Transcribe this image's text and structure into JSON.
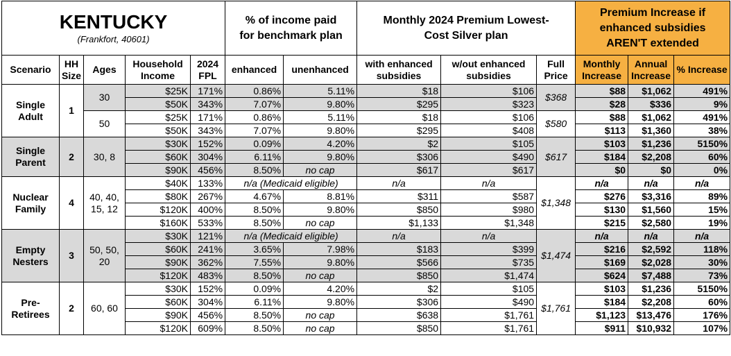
{
  "header": {
    "title": "KENTUCKY",
    "subtitle": "(Frankfort, 40601)",
    "income_share": "% of income paid for benchmark plan",
    "premium": "Monthly 2024 Premium Lowest-Cost Silver plan",
    "increase": "Premium Increase if enhanced subsidies AREN'T extended"
  },
  "columns": [
    "Scenario",
    "HH Size",
    "Ages",
    "Household Income",
    "2024 FPL",
    "enhanced",
    "unenhanced",
    "with enhanced subsidies",
    "w/out enhanced subsidies",
    "Full Price",
    "Monthly Increase",
    "Annual Increase",
    "% Increase"
  ],
  "table": {
    "groups": [
      {
        "scenario": "Single Adult",
        "hh_size": "1",
        "subgroups": [
          {
            "ages": "30",
            "full_price": "$368",
            "shaded": true,
            "rows": [
              {
                "income": "$25K",
                "fpl": "171%",
                "enhanced": "0.86%",
                "unenhanced": "5.11%",
                "with_subsidies": "$18",
                "without_subsidies": "$106",
                "monthly_increase": "$88",
                "annual_increase": "$1,062",
                "pct_increase": "491%"
              },
              {
                "income": "$50K",
                "fpl": "343%",
                "enhanced": "7.07%",
                "unenhanced": "9.80%",
                "with_subsidies": "$295",
                "without_subsidies": "$323",
                "monthly_increase": "$28",
                "annual_increase": "$336",
                "pct_increase": "9%"
              }
            ]
          },
          {
            "ages": "50",
            "full_price": "$580",
            "shaded": false,
            "rows": [
              {
                "income": "$25K",
                "fpl": "171%",
                "enhanced": "0.86%",
                "unenhanced": "5.11%",
                "with_subsidies": "$18",
                "without_subsidies": "$106",
                "monthly_increase": "$88",
                "annual_increase": "$1,062",
                "pct_increase": "491%"
              },
              {
                "income": "$50K",
                "fpl": "343%",
                "enhanced": "7.07%",
                "unenhanced": "9.80%",
                "with_subsidies": "$295",
                "without_subsidies": "$408",
                "monthly_increase": "$113",
                "annual_increase": "$1,360",
                "pct_increase": "38%"
              }
            ]
          }
        ]
      },
      {
        "scenario": "Single Parent",
        "hh_size": "2",
        "shaded": true,
        "subgroups": [
          {
            "ages": "30, 8",
            "full_price": "$617",
            "shaded": true,
            "rows": [
              {
                "income": "$30K",
                "fpl": "152%",
                "enhanced": "0.09%",
                "unenhanced": "4.20%",
                "with_subsidies": "$2",
                "without_subsidies": "$105",
                "monthly_increase": "$103",
                "annual_increase": "$1,236",
                "pct_increase": "5150%"
              },
              {
                "income": "$60K",
                "fpl": "304%",
                "enhanced": "6.11%",
                "unenhanced": "9.80%",
                "with_subsidies": "$306",
                "without_subsidies": "$490",
                "monthly_increase": "$184",
                "annual_increase": "$2,208",
                "pct_increase": "60%"
              },
              {
                "income": "$90K",
                "fpl": "456%",
                "enhanced": "8.50%",
                "unenhanced": "no cap",
                "with_subsidies": "$617",
                "without_subsidies": "$617",
                "monthly_increase": "$0",
                "annual_increase": "$0",
                "pct_increase": "0%"
              }
            ]
          }
        ]
      },
      {
        "scenario": "Nuclear Family",
        "hh_size": "4",
        "subgroups": [
          {
            "ages": "40, 40, 15, 12",
            "full_price": "$1,348",
            "shaded": false,
            "rows": [
              {
                "income": "$40K",
                "fpl": "133%",
                "enhanced": "n/a (Medicaid eligible)",
                "with_subsidies": "n/a",
                "without_subsidies": "n/a",
                "monthly_increase": "n/a",
                "annual_increase": "n/a",
                "pct_increase": "n/a"
              },
              {
                "income": "$80K",
                "fpl": "267%",
                "enhanced": "4.67%",
                "unenhanced": "8.81%",
                "with_subsidies": "$311",
                "without_subsidies": "$587",
                "monthly_increase": "$276",
                "annual_increase": "$3,316",
                "pct_increase": "89%"
              },
              {
                "income": "$120K",
                "fpl": "400%",
                "enhanced": "8.50%",
                "unenhanced": "9.80%",
                "with_subsidies": "$850",
                "without_subsidies": "$980",
                "monthly_increase": "$130",
                "annual_increase": "$1,560",
                "pct_increase": "15%"
              },
              {
                "income": "$160K",
                "fpl": "533%",
                "enhanced": "8.50%",
                "unenhanced": "no cap",
                "with_subsidies": "$1,133",
                "without_subsidies": "$1,348",
                "monthly_increase": "$215",
                "annual_increase": "$2,580",
                "pct_increase": "19%"
              }
            ]
          }
        ]
      },
      {
        "scenario": "Empty Nesters",
        "hh_size": "3",
        "shaded": true,
        "subgroups": [
          {
            "ages": "50, 50, 20",
            "full_price": "$1,474",
            "shaded": true,
            "rows": [
              {
                "income": "$30K",
                "fpl": "121%",
                "enhanced": "n/a (Medicaid eligible)",
                "with_subsidies": "n/a",
                "without_subsidies": "n/a",
                "monthly_increase": "n/a",
                "annual_increase": "n/a",
                "pct_increase": "n/a"
              },
              {
                "income": "$60K",
                "fpl": "241%",
                "enhanced": "3.65%",
                "unenhanced": "7.98%",
                "with_subsidies": "$183",
                "without_subsidies": "$399",
                "monthly_increase": "$216",
                "annual_increase": "$2,592",
                "pct_increase": "118%"
              },
              {
                "income": "$90K",
                "fpl": "362%",
                "enhanced": "7.55%",
                "unenhanced": "9.80%",
                "with_subsidies": "$566",
                "without_subsidies": "$735",
                "monthly_increase": "$169",
                "annual_increase": "$2,028",
                "pct_increase": "30%"
              },
              {
                "income": "$120K",
                "fpl": "483%",
                "enhanced": "8.50%",
                "unenhanced": "no cap",
                "with_subsidies": "$850",
                "without_subsidies": "$1,474",
                "monthly_increase": "$624",
                "annual_increase": "$7,488",
                "pct_increase": "73%"
              }
            ]
          }
        ]
      },
      {
        "scenario": "Pre-Retirees",
        "hh_size": "2",
        "subgroups": [
          {
            "ages": "60, 60",
            "full_price": "$1,761",
            "shaded": false,
            "rows": [
              {
                "income": "$30K",
                "fpl": "152%",
                "enhanced": "0.09%",
                "unenhanced": "4.20%",
                "with_subsidies": "$2",
                "without_subsidies": "$105",
                "monthly_increase": "$103",
                "annual_increase": "$1,236",
                "pct_increase": "5150%"
              },
              {
                "income": "$60K",
                "fpl": "304%",
                "enhanced": "6.11%",
                "unenhanced": "9.80%",
                "with_subsidies": "$306",
                "without_subsidies": "$490",
                "monthly_increase": "$184",
                "annual_increase": "$2,208",
                "pct_increase": "60%"
              },
              {
                "income": "$90K",
                "fpl": "456%",
                "enhanced": "8.50%",
                "unenhanced": "no cap",
                "with_subsidies": "$638",
                "without_subsidies": "$1,761",
                "monthly_increase": "$1,123",
                "annual_increase": "$13,476",
                "pct_increase": "176%"
              },
              {
                "income": "$120K",
                "fpl": "609%",
                "enhanced": "8.50%",
                "unenhanced": "no cap",
                "with_subsidies": "$850",
                "without_subsidies": "$1,761",
                "monthly_increase": "$911",
                "annual_increase": "$10,932",
                "pct_increase": "107%"
              }
            ]
          }
        ]
      }
    ]
  }
}
